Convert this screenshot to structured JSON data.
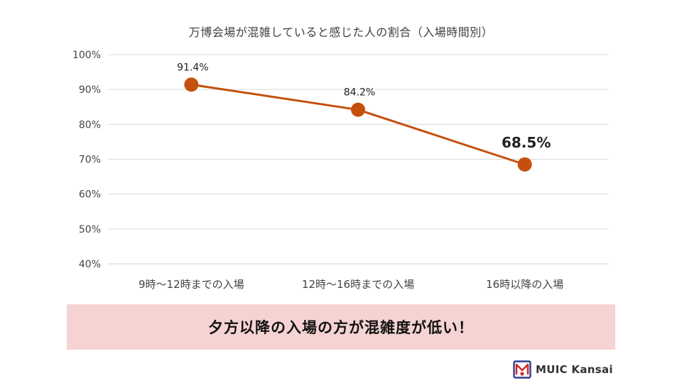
{
  "chart_data": {
    "type": "line",
    "title": "万博会場が混雑していると感じた人の割合（入場時間別）",
    "categories": [
      "9時～12時までの入場",
      "12時～16時までの入場",
      "16時以降の入場"
    ],
    "values": [
      91.4,
      84.2,
      68.5
    ],
    "data_labels": [
      "91.4%",
      "84.2%",
      "68.5%"
    ],
    "highlight_index": 2,
    "ylim": [
      40,
      100
    ],
    "yticks": [
      40,
      50,
      60,
      70,
      80,
      90,
      100
    ],
    "ytick_labels": [
      "40%",
      "50%",
      "60%",
      "70%",
      "80%",
      "90%",
      "100%"
    ],
    "grid": true,
    "legend": "none",
    "colors": {
      "line": "#c5500d",
      "marker": "#c5500d",
      "highlight_label": "#e0301e",
      "grid": "#d9d9d9"
    }
  },
  "banner": {
    "text": "夕方以降の入場の方が混雑度が低い！",
    "background": "#f5d3d3"
  },
  "brand": {
    "name": "MUIC Kansai",
    "logo_icon": "muic-logo-icon",
    "colors": {
      "red": "#d52b2b",
      "blue": "#2f3e8f"
    }
  }
}
